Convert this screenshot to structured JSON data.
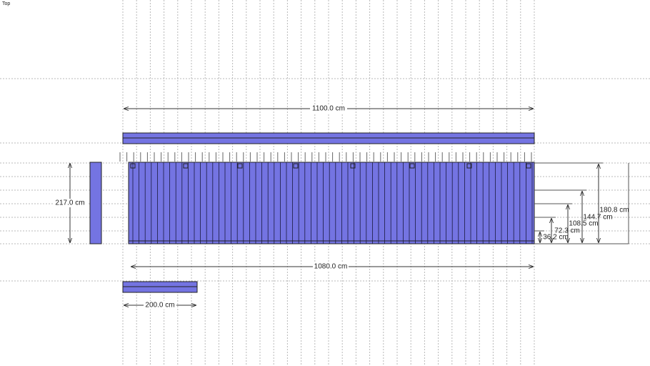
{
  "view_label": "Top",
  "dimensions": {
    "overall_length": "1100.0 cm",
    "panel_length": "1080.0 cm",
    "height": "217.0 cm",
    "small_length": "200.0 cm",
    "right": [
      "180.8 cm",
      "144.7 cm",
      "108.5 cm",
      "72.3 cm",
      "36.2 cm"
    ]
  }
}
